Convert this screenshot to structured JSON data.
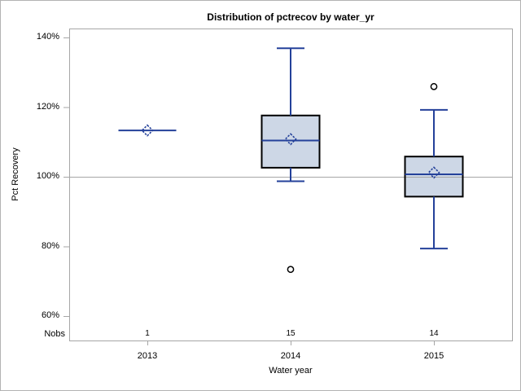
{
  "chart_data": {
    "type": "boxplot",
    "title": "Distribution of pctrecov by water_yr",
    "xlabel": "Water year",
    "ylabel": "Pct Recovery",
    "nobs_label": "Nobs",
    "categories": [
      "2013",
      "2014",
      "2015"
    ],
    "nobs": [
      1,
      15,
      14
    ],
    "yticks": [
      60,
      80,
      100,
      120,
      140
    ],
    "ytick_suffix": "%",
    "ylim": [
      53,
      143
    ],
    "reference_line": 100,
    "grid": false,
    "legend": null,
    "groups": [
      {
        "category": "2013",
        "n": 1,
        "whisker_low": 113.3,
        "q1": 113.3,
        "median": 113.3,
        "q3": 113.3,
        "whisker_high": 113.3,
        "mean": 113.3,
        "outliers": []
      },
      {
        "category": "2014",
        "n": 15,
        "whisker_low": 98.7,
        "q1": 102.6,
        "median": 110.4,
        "q3": 117.6,
        "whisker_high": 136.9,
        "mean": 110.8,
        "outliers": [
          73.4
        ]
      },
      {
        "category": "2015",
        "n": 14,
        "whisker_low": 79.4,
        "q1": 94.3,
        "median": 100.7,
        "q3": 105.8,
        "whisker_high": 119.2,
        "mean": 101.2,
        "outliers": [
          125.9
        ]
      }
    ],
    "colors": {
      "line": "#24419a",
      "box_fill": "#cdd7e6",
      "box_border": "#000000",
      "outlier": "#000000",
      "axis": "#a6a6a6",
      "reference": "#a6a6a6",
      "text": "#000000"
    }
  }
}
